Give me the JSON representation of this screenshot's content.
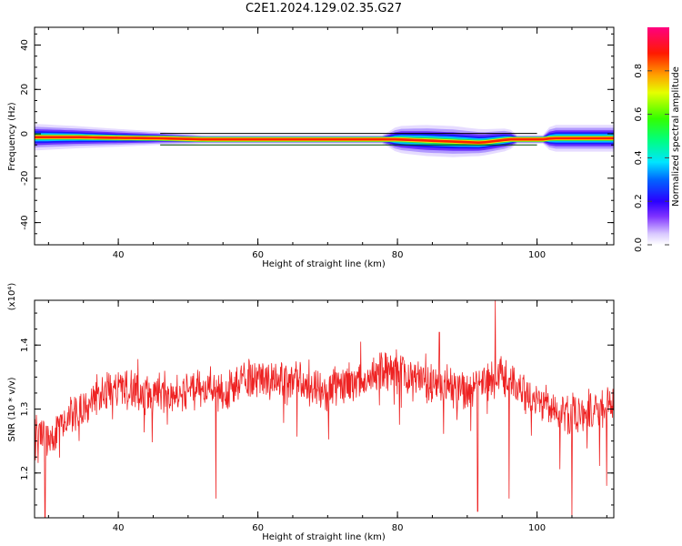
{
  "title": "C2E1.2024.129.02.35.G27",
  "chart_data": [
    {
      "type": "heatmap",
      "xlabel": "Height of straight line (km)",
      "ylabel": "Frequency (Hz)",
      "xlim": [
        28,
        111
      ],
      "ylim": [
        -50,
        48
      ],
      "xticks": [
        "40",
        "60",
        "80",
        "100"
      ],
      "yticks": [
        "40",
        "20",
        "0",
        "-20",
        "-40"
      ],
      "colorbar": {
        "label": "Normalized spectral amplitude",
        "range": [
          0.0,
          1.0
        ],
        "ticks": [
          "0.0",
          "0.2",
          "0.4",
          "0.6",
          "0.8"
        ]
      },
      "band_profile": {
        "x": [
          28,
          34,
          40,
          46,
          52,
          60,
          70,
          78,
          80,
          84,
          88,
          92,
          96,
          97,
          101,
          102,
          106,
          111
        ],
        "center_hz": [
          -1.5,
          -1.5,
          -1.8,
          -2,
          -2.5,
          -2.5,
          -2.5,
          -2.5,
          -2.5,
          -3,
          -3.5,
          -4,
          -2.5,
          -2.5,
          -2.5,
          -2,
          -2,
          -2
        ],
        "halfwidth_hz": [
          6,
          5,
          4,
          3,
          2,
          2,
          2,
          2,
          6,
          7,
          7,
          6,
          5,
          2,
          2,
          6,
          6,
          6
        ]
      }
    },
    {
      "type": "line",
      "xlabel": "Height of straight line (km)",
      "ylabel": "SNR (10 * v/v)",
      "yscale_label": "(x10⁴)",
      "xlim": [
        28,
        111
      ],
      "ylim": [
        1.13,
        1.47
      ],
      "xticks": [
        "40",
        "60",
        "80",
        "100"
      ],
      "yticks": [
        "1.4",
        "1.3",
        "1.2"
      ],
      "series_color": "#ee2222",
      "trend": {
        "x": [
          28,
          30,
          32,
          35,
          38,
          42,
          46,
          50,
          55,
          60,
          66,
          70,
          75,
          80,
          85,
          90,
          95,
          100,
          105,
          111
        ],
        "y": [
          1.27,
          1.25,
          1.28,
          1.3,
          1.33,
          1.33,
          1.32,
          1.33,
          1.33,
          1.35,
          1.34,
          1.33,
          1.35,
          1.36,
          1.34,
          1.33,
          1.35,
          1.31,
          1.29,
          1.31
        ]
      },
      "notable_points": [
        {
          "x": 29.5,
          "y": 1.13
        },
        {
          "x": 54,
          "y": 1.16
        },
        {
          "x": 86,
          "y": 1.42
        },
        {
          "x": 91.5,
          "y": 1.14
        },
        {
          "x": 94,
          "y": 1.47
        },
        {
          "x": 96,
          "y": 1.16
        },
        {
          "x": 105,
          "y": 1.13
        },
        {
          "x": 110,
          "y": 1.18
        }
      ]
    }
  ]
}
